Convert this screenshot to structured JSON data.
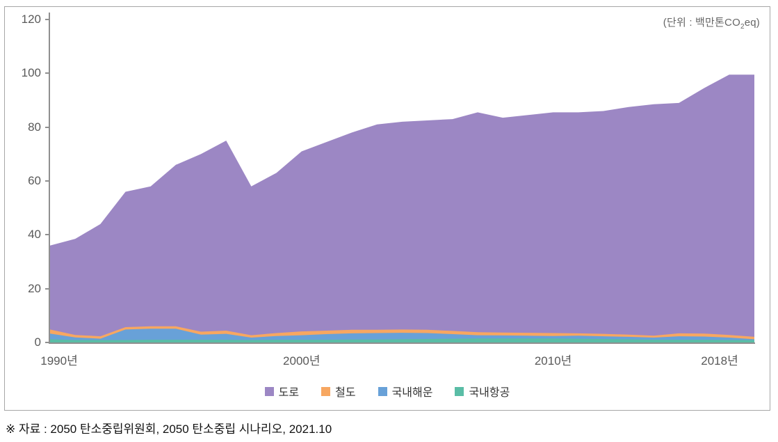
{
  "chart": {
    "unit_label_pre": "(단위 : 백만톤CO",
    "unit_label_sub": "2",
    "unit_label_post": "eq)"
  },
  "chart_data": {
    "type": "area",
    "stacked": true,
    "title": "",
    "xlabel": "",
    "ylabel": "",
    "unit_label": "(단위 : 백만톤CO2eq)",
    "ylim": [
      0,
      120
    ],
    "y_ticks": [
      0,
      20,
      40,
      60,
      80,
      100,
      120
    ],
    "grid": false,
    "legend_position": "bottom",
    "x": [
      1990,
      1991,
      1992,
      1993,
      1994,
      1995,
      1996,
      1997,
      1998,
      1999,
      2000,
      2001,
      2002,
      2003,
      2004,
      2005,
      2006,
      2007,
      2008,
      2009,
      2010,
      2011,
      2012,
      2013,
      2014,
      2015,
      2016,
      2017,
      2018
    ],
    "x_tick_labels": [
      {
        "year": 1990,
        "label": "1990년"
      },
      {
        "year": 2000,
        "label": "2000년"
      },
      {
        "year": 2010,
        "label": "2010년"
      },
      {
        "year": 2018,
        "label": "2018년"
      }
    ],
    "series": [
      {
        "key": "road",
        "name": "도로",
        "color": "#9c87c4",
        "values": [
          31.2,
          35.7,
          41.7,
          50.3,
          52.0,
          60.0,
          66.0,
          70.6,
          55.3,
          59.5,
          66.9,
          70.1,
          73.3,
          76.3,
          77.2,
          77.8,
          78.7,
          81.7,
          79.8,
          80.9,
          82.0,
          82.1,
          82.8,
          84.6,
          86.0,
          85.6,
          91.2,
          96.7,
          97.4
        ]
      },
      {
        "key": "rail",
        "name": "철도",
        "color": "#f7a761",
        "values": [
          1.5,
          0.9,
          0.9,
          0.9,
          0.9,
          0.9,
          1.1,
          1.2,
          0.9,
          1.1,
          1.4,
          1.3,
          1.3,
          1.2,
          1.2,
          1.2,
          1.2,
          1.1,
          1.1,
          1.1,
          1.1,
          0.9,
          0.9,
          0.8,
          0.7,
          1.1,
          1.1,
          1.0,
          0.9
        ]
      },
      {
        "key": "domestic-shipping",
        "name": "국내해운",
        "color": "#68a1d8",
        "values": [
          2.1,
          1.0,
          0.5,
          3.9,
          4.1,
          4.1,
          1.9,
          2.2,
          0.9,
          1.4,
          1.7,
          2.1,
          2.3,
          2.4,
          2.4,
          2.2,
          1.7,
          1.2,
          1.1,
          1.0,
          0.9,
          1.1,
          1.0,
          0.9,
          0.8,
          1.3,
          1.2,
          0.9,
          0.3
        ]
      },
      {
        "key": "domestic-aviation",
        "name": "국내항공",
        "color": "#5abda6",
        "values": [
          1.2,
          0.9,
          0.9,
          0.9,
          1.0,
          1.0,
          1.0,
          1.0,
          0.9,
          1.0,
          1.0,
          1.0,
          1.1,
          1.1,
          1.2,
          1.3,
          1.4,
          1.5,
          1.5,
          1.5,
          1.5,
          1.4,
          1.3,
          1.2,
          1.0,
          1.0,
          1.0,
          0.9,
          0.9
        ]
      }
    ]
  },
  "source_note": "※ 자료 : 2050 탄소중립위원회, 2050 탄소중립 시나리오, 2021.10"
}
